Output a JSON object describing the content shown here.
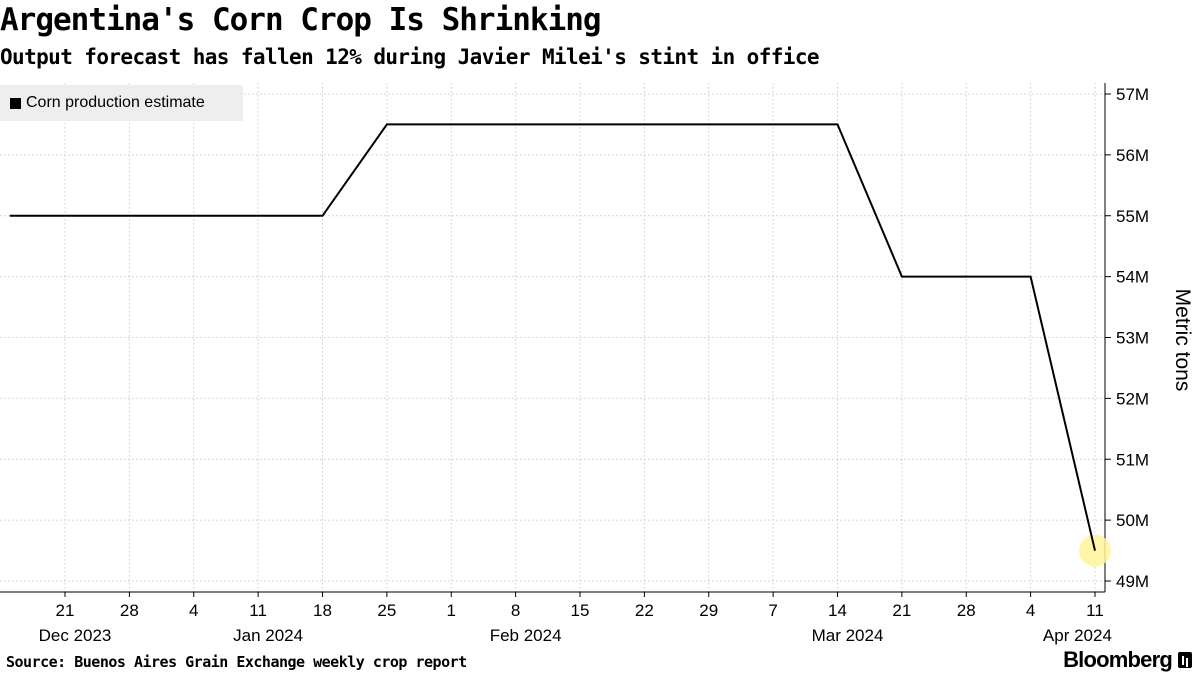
{
  "title": "Argentina's Corn Crop Is Shrinking",
  "subtitle": "Output forecast has fallen 12% during Javier Milei's stint in office",
  "source": "Source: Buenos Aires Grain Exchange weekly crop report",
  "brand": "Bloomberg",
  "colors": {
    "line": "#000000",
    "grid": "#cccccc",
    "highlight": "#fff59a",
    "legend_bg": "#eeeeee"
  },
  "chart_data": {
    "type": "line",
    "title": "Argentina's Corn Crop Is Shrinking",
    "subtitle": "Output forecast has fallen 12% during Javier Milei's stint in office",
    "ylabel": "Metric tons",
    "ylim": [
      48.8,
      57.2
    ],
    "y_ticks": [
      49,
      50,
      51,
      52,
      53,
      54,
      55,
      56,
      57
    ],
    "y_tick_labels": [
      "49M",
      "50M",
      "51M",
      "52M",
      "53M",
      "54M",
      "55M",
      "56M",
      "57M"
    ],
    "y_axis_side": "right",
    "x_ticks": [
      "2023-12-21",
      "2023-12-28",
      "2024-01-04",
      "2024-01-11",
      "2024-01-18",
      "2024-01-25",
      "2024-02-01",
      "2024-02-08",
      "2024-02-15",
      "2024-02-22",
      "2024-02-29",
      "2024-03-07",
      "2024-03-14",
      "2024-03-21",
      "2024-03-28",
      "2024-04-04",
      "2024-04-11"
    ],
    "x_tick_labels": [
      "21",
      "28",
      "4",
      "11",
      "18",
      "25",
      "1",
      "8",
      "15",
      "22",
      "29",
      "7",
      "14",
      "21",
      "28",
      "4",
      "11"
    ],
    "month_labels": [
      {
        "label": "Dec 2023",
        "date": "2023-12-21"
      },
      {
        "label": "Jan 2024",
        "date": "2024-01-11"
      },
      {
        "label": "Feb 2024",
        "date": "2024-02-08"
      },
      {
        "label": "Mar 2024",
        "date": "2024-03-14"
      },
      {
        "label": "Apr 2024",
        "date": "2024-04-08"
      }
    ],
    "grid": true,
    "legend_position": "top-left",
    "series": [
      {
        "name": "Corn production estimate",
        "x": [
          "2023-12-15",
          "2024-01-18",
          "2024-01-25",
          "2024-03-14",
          "2024-03-21",
          "2024-04-04",
          "2024-04-11"
        ],
        "y": [
          55.0,
          55.0,
          56.5,
          56.5,
          54.0,
          54.0,
          49.5
        ]
      }
    ],
    "highlight_last_point": true
  }
}
